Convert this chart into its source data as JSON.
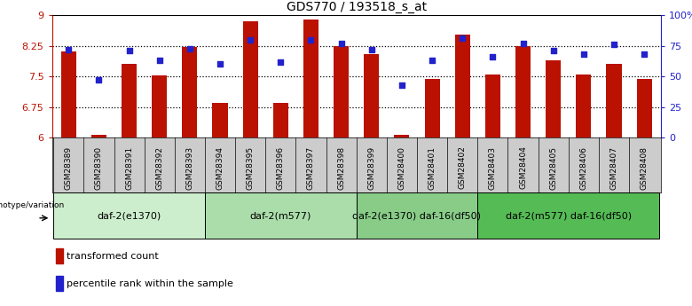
{
  "title": "GDS770 / 193518_s_at",
  "samples": [
    "GSM28389",
    "GSM28390",
    "GSM28391",
    "GSM28392",
    "GSM28393",
    "GSM28394",
    "GSM28395",
    "GSM28396",
    "GSM28397",
    "GSM28398",
    "GSM28399",
    "GSM28400",
    "GSM28401",
    "GSM28402",
    "GSM28403",
    "GSM28404",
    "GSM28405",
    "GSM28406",
    "GSM28407",
    "GSM28408"
  ],
  "transformed_count": [
    8.12,
    6.08,
    7.82,
    7.52,
    8.22,
    6.85,
    8.85,
    6.85,
    8.9,
    8.25,
    8.05,
    6.08,
    7.45,
    8.52,
    7.55,
    8.25,
    7.9,
    7.55,
    7.8,
    7.45
  ],
  "percentile_rank": [
    72,
    47,
    71,
    63,
    73,
    60,
    80,
    62,
    80,
    77,
    72,
    43,
    63,
    81,
    66,
    77,
    71,
    68,
    76,
    68
  ],
  "bar_color": "#bb1100",
  "square_color": "#2222cc",
  "ylim_left": [
    6,
    9
  ],
  "ylim_right": [
    0,
    100
  ],
  "yticks_left": [
    6,
    6.75,
    7.5,
    8.25,
    9
  ],
  "yticks_right": [
    0,
    25,
    50,
    75,
    100
  ],
  "ytick_labels_left": [
    "6",
    "6.75",
    "7.5",
    "8.25",
    "9"
  ],
  "ytick_labels_right": [
    "0",
    "25",
    "50",
    "75",
    "100%"
  ],
  "groups": [
    {
      "label": "daf-2(e1370)",
      "start": 0,
      "end": 4,
      "color": "#cceecc"
    },
    {
      "label": "daf-2(m577)",
      "start": 5,
      "end": 9,
      "color": "#aaddaa"
    },
    {
      "label": "daf-2(e1370) daf-16(df50)",
      "start": 10,
      "end": 13,
      "color": "#88cc88"
    },
    {
      "label": "daf-2(m577) daf-16(df50)",
      "start": 14,
      "end": 19,
      "color": "#55bb55"
    }
  ],
  "legend_bar_label": "transformed count",
  "legend_sq_label": "percentile rank within the sample",
  "genotype_label": "genotype/variation",
  "bar_width": 0.5,
  "marker_size": 25,
  "xtick_bg_color": "#cccccc"
}
